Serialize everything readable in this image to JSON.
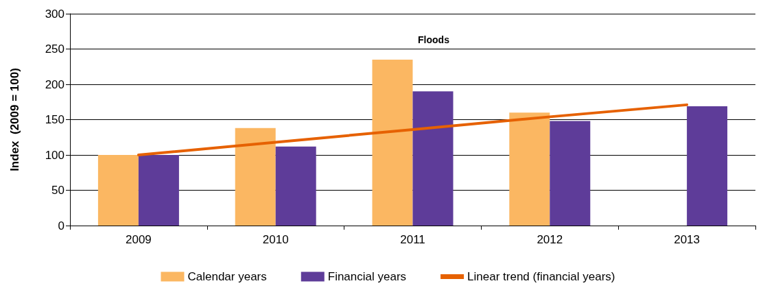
{
  "chart_data": {
    "type": "bar",
    "title": "Floods",
    "ylabel": "Index  (2009 = 100)",
    "categories": [
      "2009",
      "2010",
      "2011",
      "2012",
      "2013"
    ],
    "series": [
      {
        "name": "Calendar years",
        "color": "#fbb762",
        "values": [
          100,
          138,
          235,
          160,
          null
        ]
      },
      {
        "name": "Financial years",
        "color": "#5e3c99",
        "values": [
          100,
          112,
          190,
          148,
          169
        ]
      },
      {
        "name": "Linear trend (financial years)",
        "type": "line",
        "color": "#e66101",
        "values": [
          100,
          118,
          136,
          154,
          171
        ]
      }
    ],
    "ylim": [
      0,
      300
    ],
    "yticks": [
      0,
      50,
      100,
      150,
      200,
      250,
      300
    ],
    "grid": "y",
    "legend": "bottom",
    "marker": "none"
  }
}
